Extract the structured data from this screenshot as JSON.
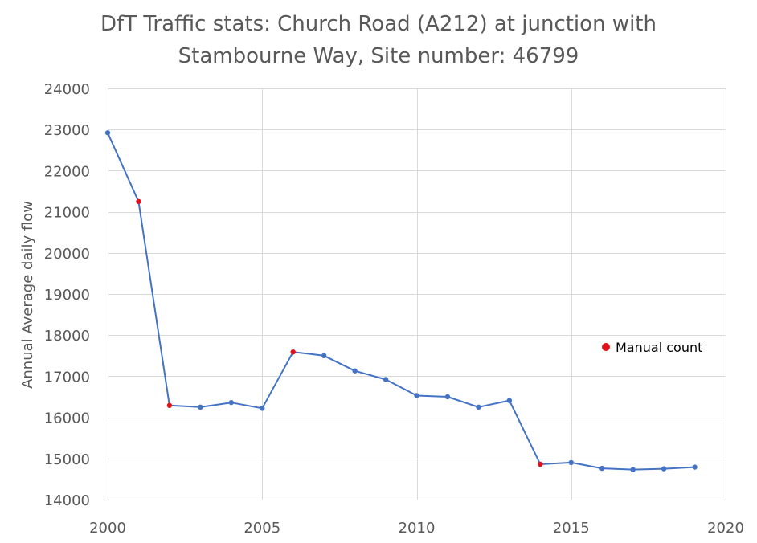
{
  "title_line1": "DfT Traffic stats: Church Road (A212) at junction with",
  "title_line2": "Stambourne Way, Site number: 46799",
  "colors": {
    "line": "#4472C4",
    "auto_point": "#4472C4",
    "manual_point": "#E0121B",
    "grid": "#D9D9D9",
    "text": "#595959"
  },
  "chart_data": {
    "type": "line",
    "title": "DfT Traffic stats: Church Road (A212) at junction with Stambourne Way, Site number: 46799",
    "xlabel": "",
    "ylabel": "Annual Average daily flow",
    "xlim": [
      2000,
      2020
    ],
    "ylim": [
      14000,
      24000
    ],
    "x_ticks": [
      2000,
      2005,
      2010,
      2015,
      2020
    ],
    "y_ticks": [
      14000,
      15000,
      16000,
      17000,
      18000,
      19000,
      20000,
      21000,
      22000,
      23000,
      24000
    ],
    "grid": true,
    "legend": [
      {
        "name": "Manual count",
        "placement": "right"
      }
    ],
    "series": [
      {
        "x": [
          2000,
          2001,
          2002,
          2003,
          2004,
          2005,
          2006,
          2007,
          2008,
          2009,
          2010,
          2011,
          2012,
          2013,
          2014,
          2015,
          2016,
          2017,
          2018,
          2019
        ],
        "y": [
          22920,
          21250,
          16290,
          16250,
          16360,
          16220,
          17590,
          17500,
          17130,
          16920,
          16530,
          16500,
          16250,
          16410,
          14860,
          14900,
          14760,
          14730,
          14750,
          14790
        ],
        "manual_count": [
          false,
          true,
          true,
          false,
          false,
          false,
          true,
          false,
          false,
          false,
          false,
          false,
          false,
          false,
          true,
          false,
          false,
          false,
          false,
          false
        ]
      }
    ]
  }
}
